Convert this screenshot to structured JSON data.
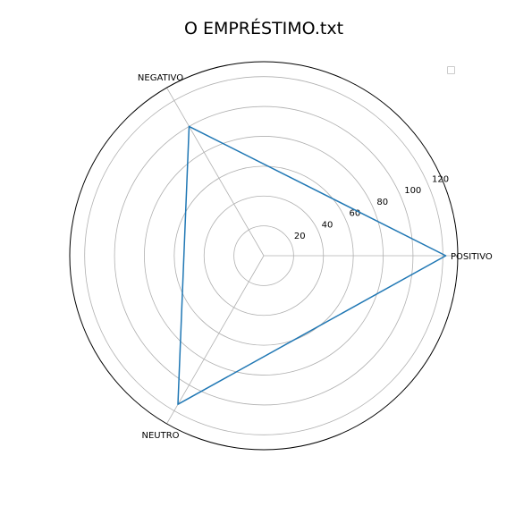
{
  "title": "O EMPRÉSTIMO.txt",
  "chart_data": {
    "type": "radar",
    "title": "O EMPRÉSTIMO.txt",
    "categories": [
      "POSITIVO",
      "NEGATIVO",
      "NEUTRO"
    ],
    "series": [
      {
        "values": [
          122,
          100,
          115
        ],
        "color": "#1f77b4"
      }
    ],
    "rlim": [
      0,
      130
    ],
    "rticks": [
      20,
      40,
      60,
      80,
      100,
      120
    ],
    "rtick_labels": [
      "20",
      "40",
      "60",
      "80",
      "100",
      "120"
    ],
    "grid": true,
    "legend": "top-right",
    "legend_entries": []
  }
}
